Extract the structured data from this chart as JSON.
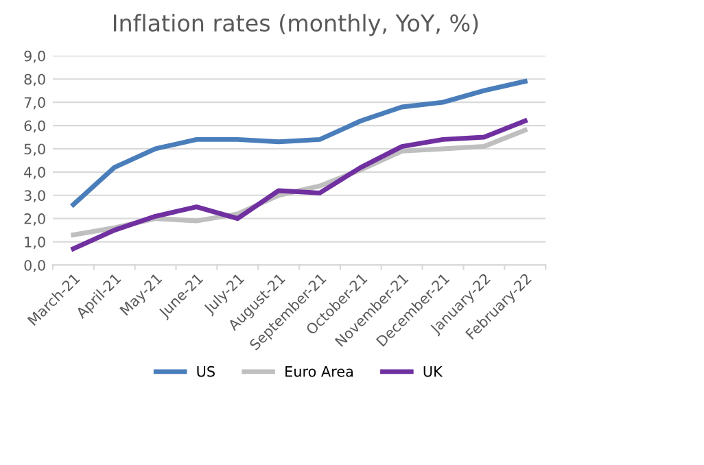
{
  "chart_data": {
    "type": "line",
    "title": "Inflation rates (monthly, YoY, %)",
    "categories": [
      "March-21",
      "April-21",
      "May-21",
      "June-21",
      "July-21",
      "August-21",
      "September-21",
      "October-21",
      "November-21",
      "December-21",
      "January-22",
      "February-22"
    ],
    "series": [
      {
        "name": "US",
        "color": "#4a7ebb",
        "values": [
          2.6,
          4.2,
          5.0,
          5.4,
          5.4,
          5.3,
          5.4,
          6.2,
          6.8,
          7.0,
          7.5,
          7.9
        ]
      },
      {
        "name": "Euro Area",
        "color": "#bfbfbf",
        "values": [
          1.3,
          1.6,
          2.0,
          1.9,
          2.2,
          3.0,
          3.4,
          4.1,
          4.9,
          5.0,
          5.1,
          5.8
        ]
      },
      {
        "name": "UK",
        "color": "#7030a0",
        "values": [
          0.7,
          1.5,
          2.1,
          2.5,
          2.0,
          3.2,
          3.1,
          4.2,
          5.1,
          5.4,
          5.5,
          6.2
        ]
      }
    ],
    "ylim": [
      0,
      9
    ],
    "yticks": [
      {
        "value": 0,
        "label": "0,0"
      },
      {
        "value": 1,
        "label": "1,0"
      },
      {
        "value": 2,
        "label": "2,0"
      },
      {
        "value": 3,
        "label": "3,0"
      },
      {
        "value": 4,
        "label": "4,0"
      },
      {
        "value": 5,
        "label": "5,0"
      },
      {
        "value": 6,
        "label": "6,0"
      },
      {
        "value": 7,
        "label": "7,0"
      },
      {
        "value": 8,
        "label": "8,0"
      },
      {
        "value": 9,
        "label": "9,0"
      }
    ],
    "grid": "y",
    "legend": "bottom",
    "marker": "none",
    "line_style": "solid"
  }
}
